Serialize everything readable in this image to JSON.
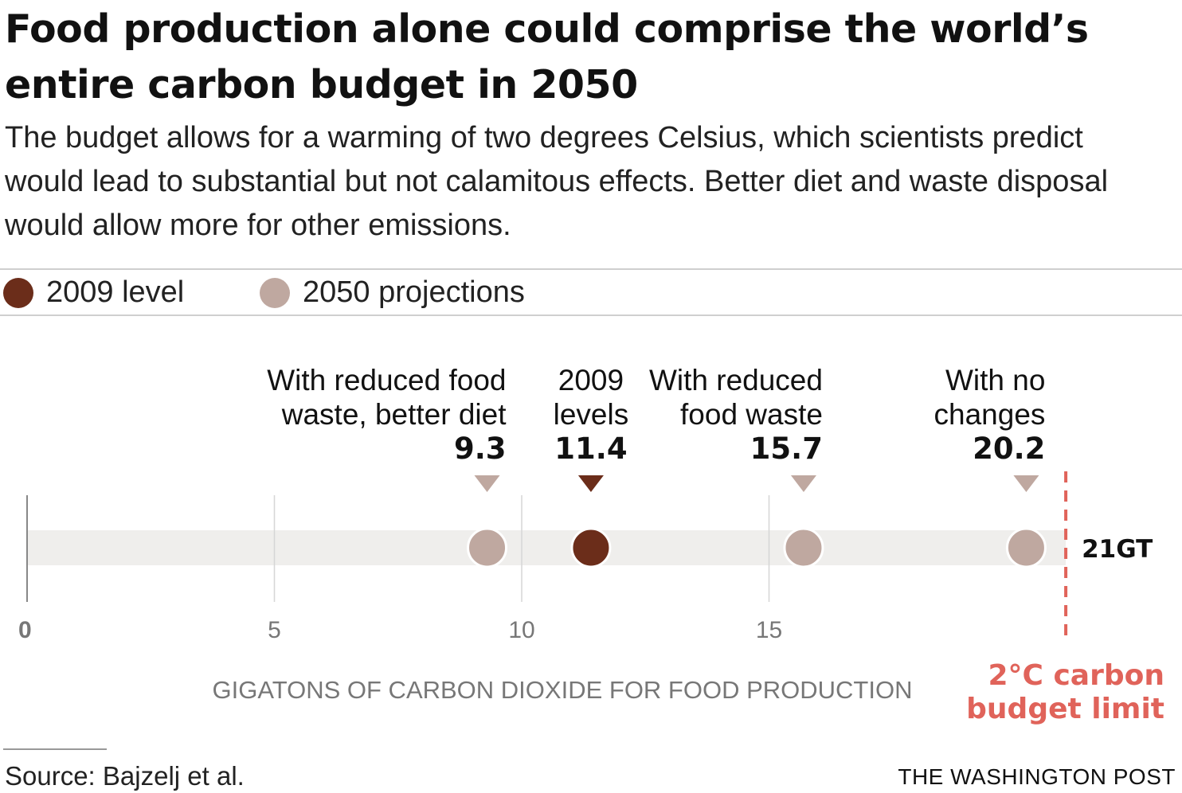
{
  "header": {
    "title": "Food production alone could comprise the world’s entire carbon budget in 2050",
    "subtitle": "The budget allows for a warming of two degrees Celsius, which scientists predict would lead to substantial but not calamitous effects. Better diet and waste disposal would allow more for other emissions."
  },
  "legend": {
    "items": [
      {
        "label": "2009 level",
        "color": "#6b2d1a"
      },
      {
        "label": "2050 projections",
        "color": "#bfa8a0"
      }
    ]
  },
  "colors": {
    "track": "#efeeec",
    "axis_text": "#777777",
    "limit": "#e0635a",
    "dot_2009": "#6b2d1a",
    "dot_2050": "#bfa8a0"
  },
  "chart_data": {
    "type": "scatter",
    "xlabel": "GIGATONS OF CARBON DIOXIDE FOR FOOD PRODUCTION",
    "xlim": [
      0,
      21
    ],
    "xticks": [
      0,
      5,
      10,
      15
    ],
    "xtick_labels": [
      "0",
      "5",
      "10",
      "15"
    ],
    "series": [
      {
        "name": "2009 level",
        "color": "#6b2d1a",
        "points": [
          {
            "x": 11.4,
            "label_lines": [
              "2009",
              "levels"
            ],
            "value_label": "11.4"
          }
        ]
      },
      {
        "name": "2050 projections",
        "color": "#bfa8a0",
        "points": [
          {
            "x": 9.3,
            "label_lines": [
              "With reduced food",
              "waste, better diet"
            ],
            "value_label": "9.3"
          },
          {
            "x": 15.7,
            "label_lines": [
              "With reduced",
              "food waste"
            ],
            "value_label": "15.7"
          },
          {
            "x": 20.2,
            "label_lines": [
              "With no",
              "changes"
            ],
            "value_label": "20.2"
          }
        ]
      }
    ],
    "reference_line": {
      "x": 21,
      "value_label": "21GT",
      "caption_lines": [
        "2°C carbon",
        "budget limit"
      ]
    }
  },
  "footer": {
    "source": "Source: Bajzelj et al.",
    "credit": "THE WASHINGTON POST"
  }
}
